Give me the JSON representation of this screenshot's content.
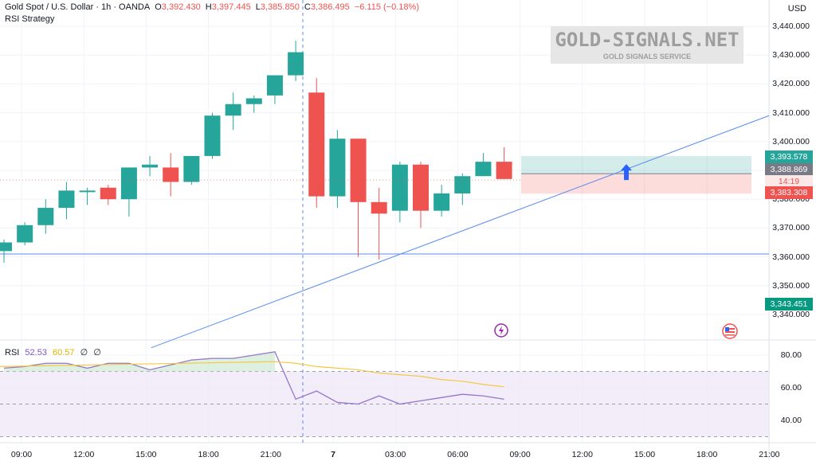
{
  "header": {
    "symbol": "Gold Spot / U.S. Dollar · 1h · OANDA",
    "o_label": "O",
    "o_value": "3,392.430",
    "h_label": "H",
    "h_value": "3,397.445",
    "l_label": "L",
    "l_value": "3,385.850",
    "c_label": "C",
    "c_value": "3,386.495",
    "change": "−6.115 (−0.18%)",
    "strategy": "RSI Strategy"
  },
  "currency": "USD",
  "watermark": {
    "title": "GOLD-SIGNALS.NET",
    "subtitle": "GOLD SIGNALS SERVICE"
  },
  "price_tags": {
    "tp": "3,393.578",
    "current": "3,388.869",
    "countdown": "14:19",
    "sl": "3,383.308",
    "support": "3,343.451"
  },
  "rsi_header": {
    "label": "RSI",
    "rsi": "52.53",
    "ma": "60.57",
    "x1": "∅",
    "x2": "∅"
  },
  "colors": {
    "up": "#26a69a",
    "down": "#ef5350",
    "line": "#5b8def",
    "rsi": "#9575cd",
    "rsi_ma": "#f5c842"
  },
  "icons": [
    "lightning-event-icon",
    "us-flag-event-icon"
  ],
  "chart_data": {
    "type": "candlestick",
    "y_axis": {
      "range": [
        3333,
        3445
      ],
      "ticks": [
        "3,440.000",
        "3,430.000",
        "3,420.000",
        "3,410.000",
        "3,400.000",
        "3,390.000",
        "3,380.000",
        "3,370.000",
        "3,360.000",
        "3,350.000",
        "3,340.000"
      ],
      "tick_values": [
        3440,
        3430,
        3420,
        3410,
        3400,
        3390,
        3380,
        3370,
        3360,
        3350,
        3340
      ]
    },
    "x_axis": {
      "ticks": [
        "09:00",
        "12:00",
        "15:00",
        "18:00",
        "21:00",
        "7",
        "03:00",
        "06:00",
        "09:00",
        "12:00",
        "15:00",
        "18:00",
        "21:00"
      ]
    },
    "candles": [
      [
        3362,
        3366,
        3358,
        3365
      ],
      [
        3365,
        3372,
        3364,
        3371
      ],
      [
        3371,
        3380,
        3368,
        3377
      ],
      [
        3377,
        3386,
        3373,
        3383
      ],
      [
        3383,
        3384,
        3378,
        3383
      ],
      [
        3384,
        3385,
        3378,
        3380
      ],
      [
        3380,
        3391,
        3374,
        3391
      ],
      [
        3391,
        3395,
        3388,
        3392
      ],
      [
        3391,
        3396,
        3381,
        3386
      ],
      [
        3386,
        3395,
        3385,
        3395
      ],
      [
        3395,
        3410,
        3394,
        3409
      ],
      [
        3409,
        3417,
        3404,
        3413
      ],
      [
        3413,
        3416,
        3410,
        3415
      ],
      [
        3416,
        3423,
        3413,
        3423
      ],
      [
        3423,
        3435,
        3421,
        3431
      ],
      [
        3417,
        3422,
        3377,
        3381
      ],
      [
        3381,
        3404,
        3377,
        3401
      ],
      [
        3401,
        3401,
        3360,
        3379
      ],
      [
        3379,
        3384,
        3359,
        3375
      ],
      [
        3376,
        3393,
        3372,
        3392
      ],
      [
        3392,
        3393,
        3370,
        3376
      ],
      [
        3376,
        3385,
        3374,
        3382
      ],
      [
        3382,
        3389,
        3378,
        3388
      ],
      [
        3388,
        3396,
        3388,
        3393
      ],
      [
        3393,
        3398,
        3387,
        3387
      ]
    ],
    "horizontal_line": 3361,
    "trendline": {
      "from": [
        4,
        3329
      ],
      "to": [
        31.5,
        3409
      ]
    },
    "position": {
      "entry": 3388.869,
      "take_profit": 3393.578,
      "stop_loss": 3383.308
    },
    "rsi": {
      "range": [
        27,
        85
      ],
      "ticks": [
        "80.00",
        "60.00",
        "40.00"
      ],
      "tick_values": [
        80,
        60,
        40
      ],
      "overbought": 70,
      "middle": 50,
      "oversold": 30,
      "values": [
        72,
        73,
        75,
        75,
        72,
        75,
        75,
        71,
        74,
        77,
        78,
        78,
        80,
        82,
        53,
        58,
        51,
        50,
        55,
        50,
        52,
        54,
        56,
        55,
        53
      ],
      "ma": [
        null,
        null,
        null,
        null,
        null,
        null,
        null,
        null,
        null,
        null,
        null,
        null,
        null,
        null,
        75,
        73,
        72,
        71,
        69,
        68,
        67,
        65,
        64,
        62,
        60.57
      ]
    }
  }
}
